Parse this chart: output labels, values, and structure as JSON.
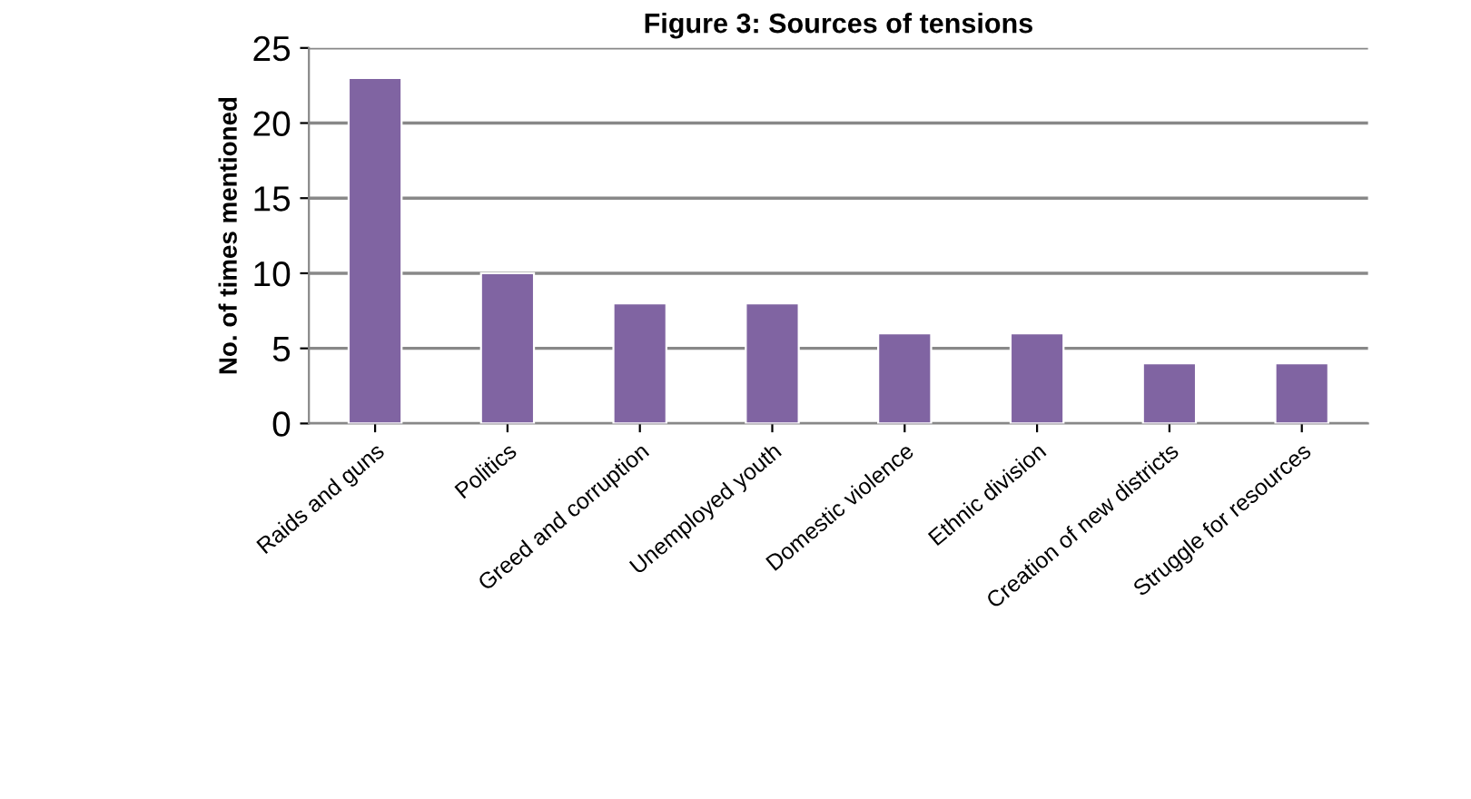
{
  "chart_data": {
    "type": "bar",
    "title": "Figure 3: Sources of tensions",
    "ylabel": "No. of times mentioned",
    "categories": [
      "Raids and guns",
      "Politics",
      "Greed and corruption",
      "Unemployed youth",
      "Domestic violence",
      "Ethnic division",
      "Creation of new districts",
      "Struggle for resources"
    ],
    "values": [
      23,
      10,
      8,
      8,
      6,
      6,
      4,
      4
    ],
    "color": "#8064a2",
    "ylim": [
      0,
      25
    ],
    "yticks": [
      0,
      5,
      10,
      15,
      20,
      25
    ],
    "grid": "y",
    "legend": false
  }
}
